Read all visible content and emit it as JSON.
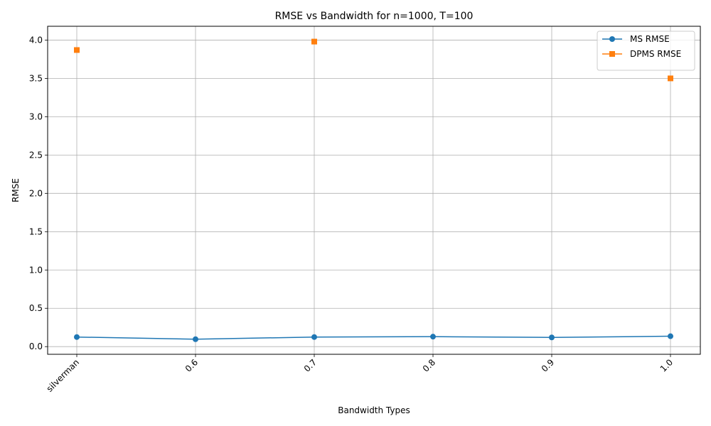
{
  "chart_data": {
    "type": "line",
    "title": "RMSE vs Bandwidth for n=1000, T=100",
    "xlabel": "Bandwidth Types",
    "ylabel": "RMSE",
    "categories": [
      "silverman",
      "0.6",
      "0.7",
      "0.8",
      "0.9",
      "1.0"
    ],
    "ylim": [
      -0.1,
      4.18
    ],
    "yticks": [
      0.0,
      0.5,
      1.0,
      1.5,
      2.0,
      2.5,
      3.0,
      3.5,
      4.0
    ],
    "ytick_labels": [
      "0.0",
      "0.5",
      "1.0",
      "1.5",
      "2.0",
      "2.5",
      "3.0",
      "3.5",
      "4.0"
    ],
    "grid": true,
    "legend_position": "top-right",
    "series": [
      {
        "name": "MS RMSE",
        "color": "#1f77b4",
        "marker": "circle",
        "line": true,
        "values": [
          0.125,
          0.097,
          0.125,
          0.13,
          0.12,
          0.136
        ]
      },
      {
        "name": "DPMS RMSE",
        "color": "#ff7f0e",
        "marker": "square",
        "line": false,
        "values": [
          3.87,
          null,
          3.98,
          null,
          null,
          3.5
        ]
      }
    ]
  }
}
